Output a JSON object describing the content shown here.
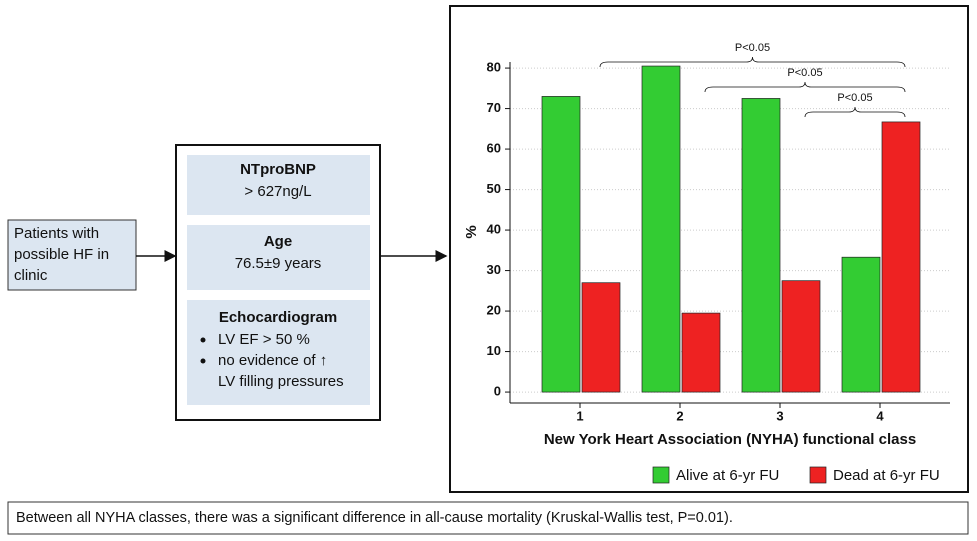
{
  "input": {
    "lines": [
      "Patients with",
      "possible HF in",
      "clinic"
    ]
  },
  "criteria": [
    {
      "title": "NTproBNP",
      "lines": [
        "> 627ng/L"
      ]
    },
    {
      "title": "Age",
      "lines": [
        "76.5±9 years"
      ]
    },
    {
      "title": "Echocardiogram",
      "bullets": [
        [
          "LV EF > 50 %"
        ],
        [
          "no evidence of ↑",
          "LV filling pressures"
        ]
      ]
    }
  ],
  "chart_data": {
    "type": "bar",
    "x_label": "New York Heart Association (NYHA) functional class",
    "y_label": "%",
    "categories": [
      "1",
      "2",
      "3",
      "4"
    ],
    "series": [
      {
        "name": "Alive at 6-yr FU",
        "color": "#33cc33",
        "values": [
          73,
          80.5,
          72.5,
          33.3
        ]
      },
      {
        "name": "Dead at 6-yr FU",
        "color": "#ee2222",
        "values": [
          27,
          19.5,
          27.5,
          66.7
        ]
      }
    ],
    "ylim": [
      -2.7,
      81.5
    ],
    "yticks": [
      0,
      10,
      20,
      30,
      40,
      50,
      60,
      70,
      80
    ],
    "grid": true,
    "annotations": [
      "P<0.05",
      "P<0.05",
      "P<0.05"
    ]
  },
  "footer": "Between all NYHA classes, there was a significant difference in all-cause mortality (Kruskal-Wallis test, P=0.01)."
}
